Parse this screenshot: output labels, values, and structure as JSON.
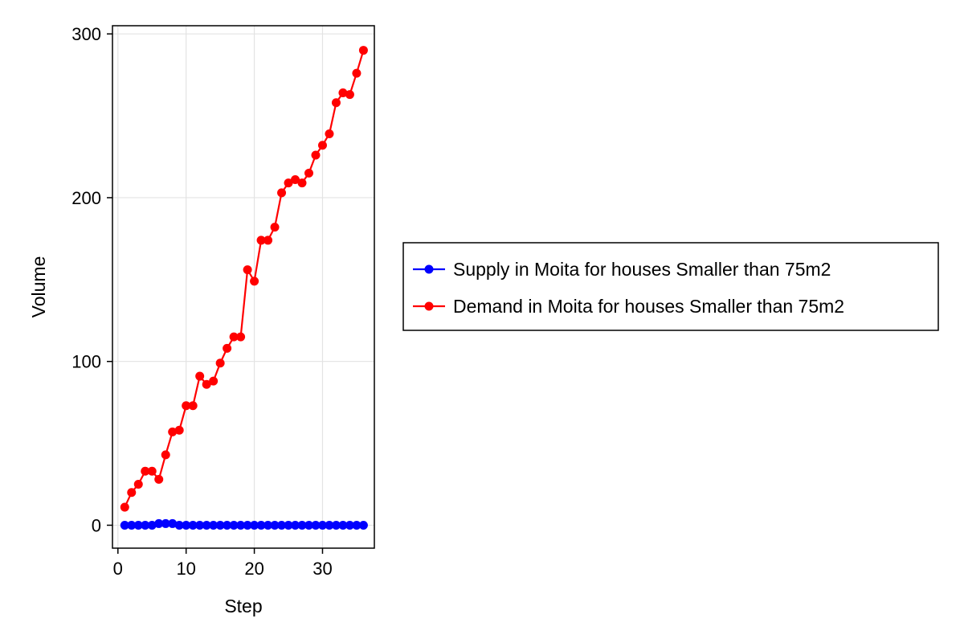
{
  "chart_data": {
    "type": "line",
    "title": "",
    "xlabel": "Step",
    "ylabel": "Volume",
    "xlim": [
      -0.8,
      37.6
    ],
    "ylim": [
      -14,
      305
    ],
    "xticks": [
      0,
      10,
      20,
      30
    ],
    "yticks": [
      0,
      100,
      200,
      300
    ],
    "xtick_labels": [
      "0",
      "10",
      "20",
      "30"
    ],
    "ytick_labels": [
      "0",
      "100",
      "200",
      "300"
    ],
    "grid": true,
    "legend_position": "right",
    "x": [
      1,
      2,
      3,
      4,
      5,
      6,
      7,
      8,
      9,
      10,
      11,
      12,
      13,
      14,
      15,
      16,
      17,
      18,
      19,
      20,
      21,
      22,
      23,
      24,
      25,
      26,
      27,
      28,
      29,
      30,
      31,
      32,
      33,
      34,
      35,
      36
    ],
    "series": [
      {
        "name": "Supply in Moita for houses Smaller than 75m2",
        "color": "#0000ff",
        "values": [
          0,
          0,
          0,
          0,
          0,
          1,
          1,
          1,
          0,
          0,
          0,
          0,
          0,
          0,
          0,
          0,
          0,
          0,
          0,
          0,
          0,
          0,
          0,
          0,
          0,
          0,
          0,
          0,
          0,
          0,
          0,
          0,
          0,
          0,
          0,
          0
        ]
      },
      {
        "name": "Demand in Moita for houses Smaller than 75m2",
        "color": "#ff0000",
        "values": [
          11,
          20,
          25,
          33,
          33,
          28,
          43,
          57,
          58,
          73,
          73,
          91,
          86,
          88,
          99,
          108,
          115,
          115,
          156,
          149,
          174,
          174,
          182,
          203,
          209,
          211,
          209,
          215,
          226,
          232,
          239,
          258,
          264,
          263,
          276,
          290
        ]
      }
    ]
  }
}
